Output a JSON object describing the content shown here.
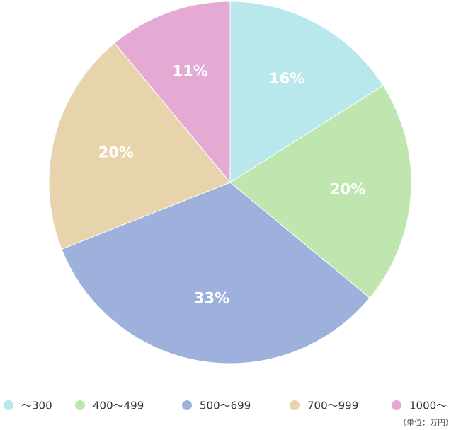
{
  "chart_data": {
    "type": "pie",
    "categories": [
      "～300",
      "400～499",
      "500～699",
      "700～999",
      "1000～"
    ],
    "values": [
      16,
      20,
      33,
      20,
      11
    ],
    "value_labels": [
      "16%",
      "20%",
      "33%",
      "20%",
      "11%"
    ],
    "colors": [
      "#b9e8ec",
      "#bee6ae",
      "#9eb1dd",
      "#e8d4ac",
      "#e4aad4"
    ],
    "note": "（単位：万円）"
  }
}
